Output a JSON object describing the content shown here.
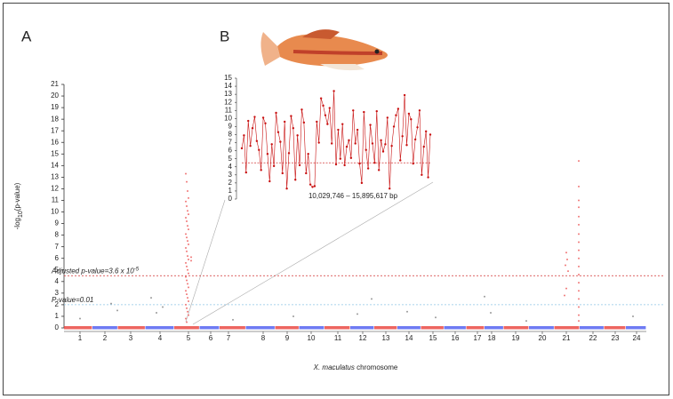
{
  "panel_labels": [
    "A",
    "B"
  ],
  "chart_data": [
    {
      "type": "scatter",
      "ylabel": {
        "prefix": "-log",
        "sub": "10",
        "suffix": "(p-value)"
      },
      "xlabel": {
        "italic": "X. maculatus",
        "rest": " chromosome"
      },
      "ylim": [
        0,
        21
      ],
      "yticks": [
        0,
        1,
        2,
        3,
        4,
        5,
        6,
        7,
        8,
        9,
        10,
        11,
        12,
        13,
        14,
        15,
        16,
        17,
        18,
        19,
        20,
        21
      ],
      "xlim": [
        0,
        655
      ],
      "xticks": [
        {
          "value": 18,
          "label": "1"
        },
        {
          "value": 46,
          "label": "2"
        },
        {
          "value": 75,
          "label": "3"
        },
        {
          "value": 108,
          "label": "4"
        },
        {
          "value": 140,
          "label": "5"
        },
        {
          "value": 165,
          "label": "6"
        },
        {
          "value": 185,
          "label": "7"
        },
        {
          "value": 224,
          "label": "8"
        },
        {
          "value": 251,
          "label": "9"
        },
        {
          "value": 278,
          "label": "10"
        },
        {
          "value": 308,
          "label": "11"
        },
        {
          "value": 336,
          "label": "12"
        },
        {
          "value": 362,
          "label": "13"
        },
        {
          "value": 388,
          "label": "14"
        },
        {
          "value": 415,
          "label": "15"
        },
        {
          "value": 440,
          "label": "16"
        },
        {
          "value": 465,
          "label": "17"
        },
        {
          "value": 481,
          "label": "18"
        },
        {
          "value": 508,
          "label": "19"
        },
        {
          "value": 538,
          "label": "20"
        },
        {
          "value": 565,
          "label": "21"
        },
        {
          "value": 595,
          "label": "22"
        },
        {
          "value": 620,
          "label": "23"
        },
        {
          "value": 644,
          "label": "24"
        }
      ],
      "band_colors": [
        "#e8403a",
        "#4a5af0"
      ],
      "thresholds": [
        {
          "label": "Adjusted p-value=3.6 x 10",
          "sup": "-5",
          "value": 4.5,
          "color": "#d03030"
        },
        {
          "label": "P-value=0.01",
          "value": 2,
          "color": "#8cc4e4"
        }
      ],
      "series": [
        {
          "color": "#f07878",
          "x": [
            137,
            138,
            139,
            140,
            137,
            138,
            139,
            140,
            137,
            138,
            139,
            140,
            137,
            138,
            139,
            140,
            137,
            138,
            139,
            140,
            137,
            138,
            139,
            140,
            137,
            138,
            139,
            140,
            137,
            138,
            139,
            140,
            137,
            138,
            139,
            140,
            137,
            138,
            143,
            143,
            579,
            579,
            579,
            579,
            579,
            579,
            579,
            579,
            579,
            579,
            579,
            579,
            579,
            579,
            579,
            579,
            579,
            579,
            565,
            566,
            564,
            567,
            565,
            563
          ],
          "values": [
            13.3,
            12.6,
            11.8,
            11.2,
            10.9,
            10.5,
            10.1,
            9.8,
            9.5,
            9.2,
            8.8,
            8.5,
            8.1,
            7.8,
            7.5,
            7.2,
            6.9,
            6.6,
            6.2,
            5.9,
            5.6,
            5.3,
            5.0,
            4.7,
            4.4,
            4.1,
            3.8,
            3.5,
            3.2,
            2.9,
            2.6,
            2.3,
            2.0,
            1.7,
            1.4,
            1.1,
            0.8,
            0.5,
            6.1,
            5.8,
            14.4,
            12.2,
            11.0,
            10.4,
            9.6,
            8.9,
            8.1,
            7.4,
            6.7,
            6.0,
            5.3,
            4.6,
            3.9,
            3.2,
            2.5,
            1.8,
            1.1,
            0.6,
            6.5,
            5.9,
            5.4,
            4.9,
            3.4,
            2.8
          ]
        },
        {
          "color": "#9a9a9a",
          "x": [
            18,
            53,
            60,
            98,
            104,
            111,
            190,
            258,
            330,
            346,
            386,
            418,
            473,
            480,
            520,
            640
          ],
          "values": [
            0.8,
            2.1,
            1.5,
            2.6,
            1.3,
            1.8,
            0.7,
            1.0,
            1.2,
            2.5,
            1.4,
            0.9,
            2.7,
            1.3,
            0.6,
            1.0
          ]
        }
      ]
    },
    {
      "type": "line",
      "xlabel": "10,029,746 – 15,895,617 bp",
      "ylim": [
        0,
        15
      ],
      "yticks": [
        0,
        1,
        2,
        3,
        4,
        5,
        6,
        7,
        8,
        9,
        10,
        11,
        12,
        13,
        14,
        15
      ],
      "threshold": 4.5,
      "color": "#c81010",
      "values": [
        6.3,
        7.9,
        3.3,
        9.7,
        6.6,
        8.8,
        10.2,
        7.2,
        6.1,
        3.6,
        10.1,
        9.4,
        5.6,
        2.2,
        6.8,
        4.1,
        10.7,
        8.3,
        7.1,
        3.2,
        9.6,
        1.3,
        5.7,
        10.3,
        8.8,
        2.4,
        7.9,
        4.2,
        11.1,
        9.5,
        3.2,
        5.6,
        1.8,
        1.5,
        1.6,
        9.6,
        7.0,
        12.5,
        11.6,
        10.4,
        9.3,
        11.3,
        6.9,
        13.4,
        4.3,
        8.6,
        5.0,
        9.3,
        4.2,
        6.5,
        7.3,
        5.1,
        11.0,
        6.9,
        8.6,
        4.4,
        2.0,
        10.8,
        6.1,
        3.8,
        9.2,
        6.9,
        4.5,
        10.9,
        3.6,
        7.3,
        5.9,
        6.8,
        10.1,
        1.3,
        6.6,
        9.0,
        10.4,
        11.2,
        4.8,
        7.8,
        12.9,
        6.7,
        10.6,
        9.9,
        4.4,
        7.4,
        8.9,
        11.0,
        3.0,
        6.5,
        8.4,
        2.7,
        8.0
      ]
    }
  ]
}
